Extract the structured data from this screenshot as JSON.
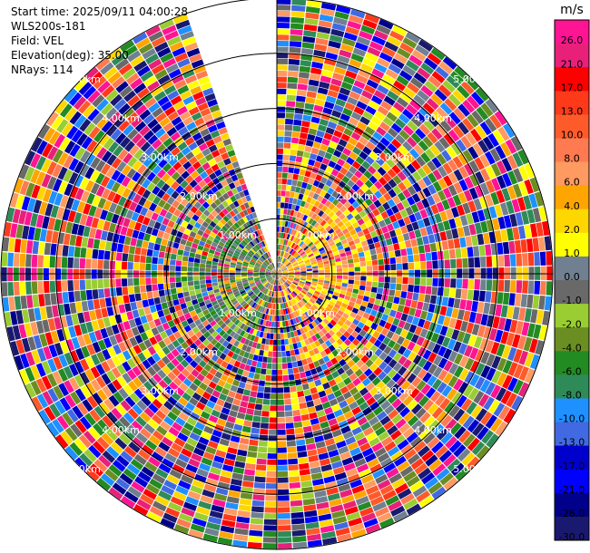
{
  "header": {
    "start_time": "Start time: 2025/09/11 04:00:28",
    "site": "WLS200s-181",
    "field": "Field: VEL",
    "elevation": "Elevation(deg): 35.00",
    "nrays": "NRays: 114"
  },
  "colorbar": {
    "unit": "m/s",
    "ticks": [
      "26.0",
      "21.0",
      "17.0",
      "13.0",
      "10.0",
      "8.0",
      "6.0",
      "4.0",
      "2.0",
      "1.0",
      "0.0",
      "-1.0",
      "-2.0",
      "-4.0",
      "-6.0",
      "-8.0",
      "-10.0",
      "-13.0",
      "-17.0",
      "-21.0",
      "-26.0",
      "-30.0"
    ],
    "colors": [
      "#ff1493",
      "#e8207a",
      "#ff0000",
      "#ff3a1a",
      "#ff5a2a",
      "#ff7a50",
      "#ff9a60",
      "#ffa500",
      "#ffd700",
      "#ffff00",
      "#708090",
      "#696969",
      "#9acd32",
      "#6b8e23",
      "#228b22",
      "#2e8b57",
      "#1e90ff",
      "#4169e1",
      "#0000cd",
      "#0000ff",
      "#00008b",
      "#191970"
    ]
  },
  "range_labels": [
    "1.00km",
    "2.00km",
    "3.00km",
    "4.00km",
    "5.00km"
  ],
  "chart_data": {
    "type": "heatmap",
    "projection": "polar PPI",
    "field": "VEL",
    "units": "m/s",
    "nrays": 114,
    "elevation_deg": 35.0,
    "range_rings_km": [
      1,
      2,
      3,
      4,
      5
    ],
    "max_range_km": 5.0,
    "missing_sector_azimuth_deg": [
      340,
      360
    ],
    "color_limits": [
      -30.0,
      26.0
    ]
  }
}
